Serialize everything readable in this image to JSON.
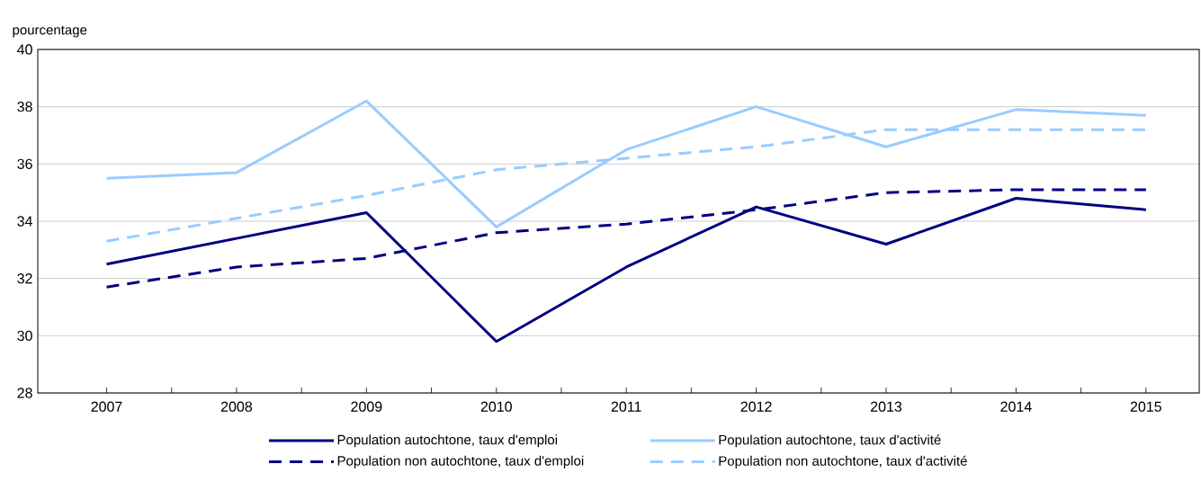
{
  "chart_data": {
    "type": "line",
    "ylabel": "pourcentage",
    "categories": [
      "2007",
      "2008",
      "2009",
      "2010",
      "2011",
      "2012",
      "2013",
      "2014",
      "2015"
    ],
    "series": [
      {
        "name": "Population autochtone, taux d'emploi",
        "color": "#000080",
        "line_style": "solid",
        "values": [
          32.5,
          33.4,
          34.3,
          29.8,
          32.4,
          34.5,
          33.2,
          34.8,
          34.4
        ]
      },
      {
        "name": "Population autochtone, taux d'activité",
        "color": "#99ccff",
        "line_style": "solid",
        "values": [
          35.5,
          35.7,
          38.2,
          33.8,
          36.5,
          38.0,
          36.6,
          37.9,
          37.7
        ]
      },
      {
        "name": "Population non autochtone, taux d'emploi",
        "color": "#000080",
        "line_style": "dashed",
        "values": [
          31.7,
          32.4,
          32.7,
          33.6,
          33.9,
          34.4,
          35.0,
          35.1,
          35.1
        ]
      },
      {
        "name": "Population non autochtone, taux d'activité",
        "color": "#99ccff",
        "line_style": "dashed",
        "values": [
          33.3,
          34.1,
          34.9,
          35.8,
          36.2,
          36.6,
          37.2,
          37.2,
          37.2
        ]
      }
    ],
    "ylim": [
      28,
      40
    ],
    "yticks": [
      28,
      30,
      32,
      34,
      36,
      38,
      40
    ],
    "grid": "y",
    "legend": "bottom",
    "marker": "none"
  }
}
